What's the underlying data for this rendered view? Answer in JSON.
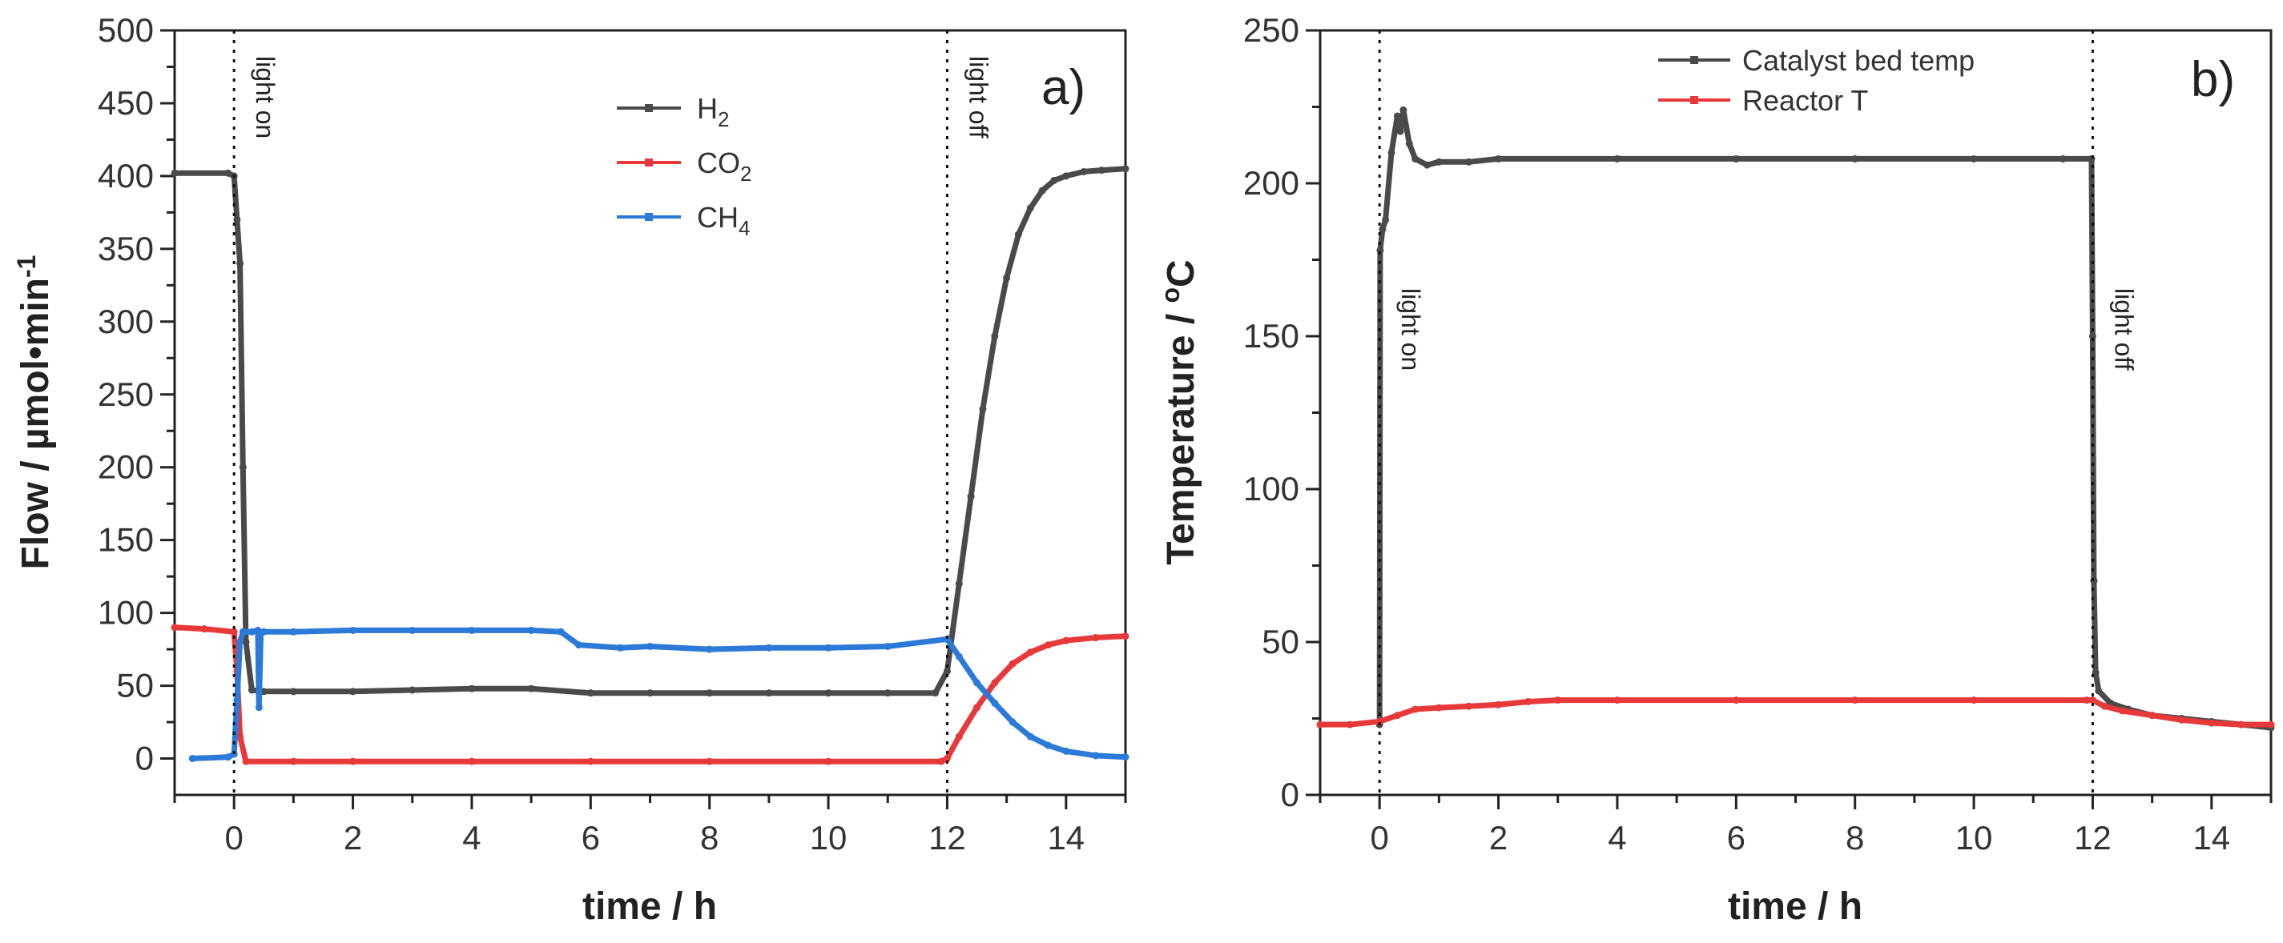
{
  "chart_data": [
    {
      "type": "line",
      "panel_label": "a)",
      "xlabel": "time / h",
      "ylabel": "Flow / µmol•min",
      "ylabel_sup": "-1",
      "xlim": [
        -1,
        15
      ],
      "ylim": [
        -25,
        500
      ],
      "x_ticks": [
        0,
        2,
        4,
        6,
        8,
        10,
        12,
        14
      ],
      "x_tick_labels": [
        "0",
        "2",
        "4",
        "6",
        "8",
        "10",
        "12",
        "14"
      ],
      "y_ticks": [
        0,
        50,
        100,
        150,
        200,
        250,
        300,
        350,
        400,
        450,
        500
      ],
      "y_tick_labels": [
        "0",
        "50",
        "100",
        "150",
        "200",
        "250",
        "300",
        "350",
        "400",
        "450",
        "500"
      ],
      "legend": {
        "placement": "top-center"
      },
      "annotations": [
        {
          "text": "light on",
          "x": 0
        },
        {
          "text": "light off",
          "x": 12
        }
      ],
      "series": [
        {
          "name": "H2",
          "label_main": "H",
          "label_sub": "2",
          "color": "#4a4a4a",
          "x": [
            -1,
            -0.1,
            0.0,
            0.05,
            0.1,
            0.15,
            0.2,
            0.3,
            0.5,
            1,
            2,
            3,
            4,
            5,
            6,
            7,
            8,
            9,
            10,
            11,
            11.8,
            12.0,
            12.2,
            12.4,
            12.6,
            12.8,
            13.0,
            13.2,
            13.4,
            13.6,
            13.8,
            14.0,
            14.3,
            14.6,
            15.0
          ],
          "y": [
            402,
            402,
            400,
            370,
            340,
            200,
            80,
            47,
            46,
            46,
            46,
            47,
            48,
            48,
            45,
            45,
            45,
            45,
            45,
            45,
            45,
            60,
            120,
            180,
            240,
            290,
            330,
            360,
            378,
            390,
            397,
            400,
            403,
            404,
            405
          ]
        },
        {
          "name": "CO2",
          "label_main": "CO",
          "label_sub": "2",
          "color": "#e8393a",
          "x": [
            -1,
            -0.5,
            0,
            0.05,
            0.1,
            0.2,
            1,
            2,
            4,
            6,
            8,
            10,
            11.9,
            12.0,
            12.2,
            12.5,
            12.8,
            13.1,
            13.4,
            13.7,
            14.0,
            14.5,
            15.0
          ],
          "y": [
            90,
            89,
            87,
            60,
            15,
            -2,
            -2,
            -2,
            -2,
            -2,
            -2,
            -2,
            -2,
            0,
            15,
            35,
            52,
            65,
            73,
            78,
            81,
            83,
            84
          ]
        },
        {
          "name": "CH4",
          "label_main": "CH",
          "label_sub": "4",
          "color": "#2b7ad8",
          "x": [
            -0.7,
            -0.1,
            0.0,
            0.05,
            0.1,
            0.15,
            0.3,
            0.4,
            0.42,
            0.45,
            0.5,
            1,
            2,
            3,
            4,
            5,
            5.5,
            5.8,
            6.5,
            7,
            8,
            9,
            10,
            11,
            12.0,
            12.2,
            12.5,
            12.8,
            13.1,
            13.4,
            13.7,
            14.0,
            14.5,
            15.0
          ],
          "y": [
            0,
            1,
            3,
            40,
            80,
            87,
            87,
            88,
            35,
            86,
            87,
            87,
            88,
            88,
            88,
            88,
            87,
            78,
            76,
            77,
            75,
            76,
            76,
            77,
            82,
            70,
            52,
            38,
            25,
            15,
            9,
            5,
            2,
            1
          ]
        }
      ]
    },
    {
      "type": "line",
      "panel_label": "b)",
      "xlabel": "time / h",
      "ylabel_main": "Temperature / ",
      "ylabel_sup": "o",
      "ylabel_unit": "C",
      "xlim": [
        -1,
        15
      ],
      "ylim": [
        0,
        250
      ],
      "x_ticks": [
        0,
        2,
        4,
        6,
        8,
        10,
        12,
        14
      ],
      "x_tick_labels": [
        "0",
        "2",
        "4",
        "6",
        "8",
        "10",
        "12",
        "14"
      ],
      "y_ticks": [
        0,
        50,
        100,
        150,
        200,
        250
      ],
      "y_tick_labels": [
        "0",
        "50",
        "100",
        "150",
        "200",
        "250"
      ],
      "legend": {
        "placement": "top-center"
      },
      "annotations": [
        {
          "text": "light on",
          "x": 0
        },
        {
          "text": "light off",
          "x": 12
        }
      ],
      "series": [
        {
          "name": "Catalyst bed temp",
          "color": "#4a4a4a",
          "x": [
            0.0,
            0.01,
            0.05,
            0.1,
            0.2,
            0.3,
            0.35,
            0.4,
            0.5,
            0.6,
            0.8,
            1.0,
            1.5,
            2,
            4,
            6,
            8,
            10,
            11.5,
            11.98,
            12.0,
            12.02,
            12.05,
            12.1,
            12.3,
            12.6,
            13,
            13.5,
            14,
            14.5,
            15.0
          ],
          "y": [
            23,
            178,
            185,
            188,
            210,
            222,
            217,
            224,
            213,
            208,
            206,
            207,
            207,
            208,
            208,
            208,
            208,
            208,
            208,
            208,
            150,
            70,
            40,
            34,
            30,
            28,
            26,
            25,
            24,
            23,
            22
          ]
        },
        {
          "name": "Reactor T",
          "color": "#e8393a",
          "x": [
            -1,
            -0.5,
            0,
            0.3,
            0.6,
            1,
            1.5,
            2,
            2.5,
            3,
            4,
            6,
            8,
            10,
            11.9,
            12.0,
            12.2,
            12.5,
            13,
            13.5,
            14,
            14.5,
            15.0
          ],
          "y": [
            23,
            23,
            24,
            26,
            28,
            28.5,
            29,
            29.5,
            30.5,
            31,
            31,
            31,
            31,
            31,
            31,
            31,
            29,
            27.5,
            26,
            24.5,
            23.5,
            23,
            23
          ]
        }
      ]
    }
  ]
}
